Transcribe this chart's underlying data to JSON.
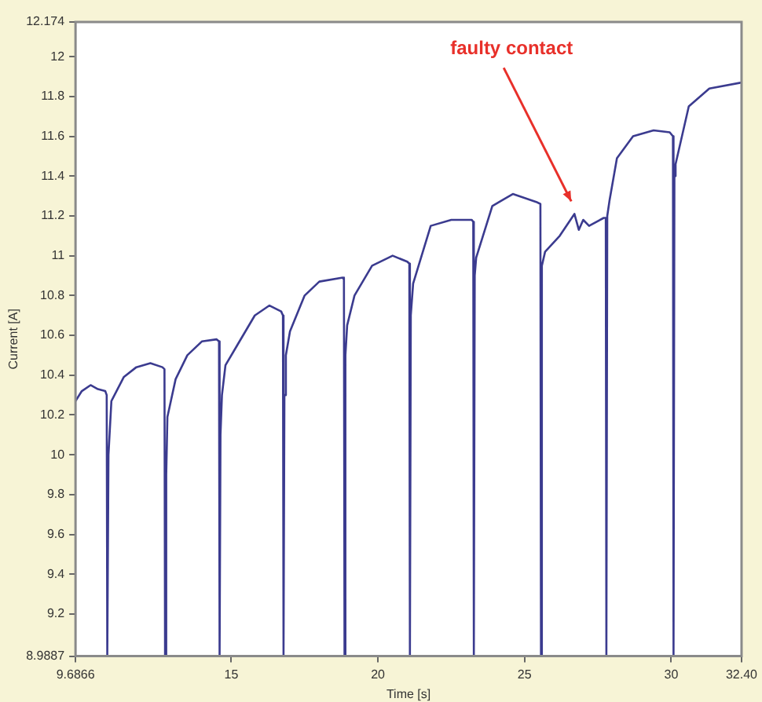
{
  "chart_data": {
    "type": "line",
    "xlabel": "Time [s]",
    "ylabel": "Current [A]",
    "series": [
      {
        "color": "#3b3b8f",
        "x": [
          9.6866,
          9.9,
          10.2,
          10.45,
          10.7,
          10.75,
          10.77,
          10.81,
          10.91,
          11.33,
          11.76,
          12.24,
          12.65,
          12.72,
          12.74,
          12.78,
          12.82,
          13.1,
          13.5,
          14.0,
          14.5,
          14.58,
          14.6,
          14.63,
          14.68,
          14.8,
          15.2,
          15.8,
          16.3,
          16.7,
          16.76,
          16.78,
          16.81,
          16.86,
          17.0,
          17.5,
          18.0,
          18.8,
          18.84,
          18.86,
          18.89,
          18.95,
          19.2,
          19.8,
          20.5,
          21.0,
          21.07,
          21.09,
          21.12,
          21.2,
          21.8,
          22.5,
          23.2,
          23.25,
          23.27,
          23.3,
          23.35,
          23.9,
          24.6,
          25.4,
          25.54,
          25.56,
          25.59,
          25.7,
          26.2,
          26.7,
          26.85,
          27.0,
          27.2,
          27.7,
          27.77,
          27.79,
          27.82,
          27.9,
          28.15,
          28.7,
          29.4,
          29.95,
          30.06,
          30.08,
          30.11,
          30.15,
          30.6,
          31.3,
          32.4
        ],
        "values": [
          10.27,
          10.32,
          10.35,
          10.33,
          10.32,
          10.3,
          8.9887,
          10.0,
          10.27,
          10.39,
          10.44,
          10.46,
          10.44,
          10.43,
          8.9887,
          9.9,
          10.19,
          10.38,
          10.5,
          10.57,
          10.58,
          10.57,
          8.9887,
          10.1,
          10.3,
          10.45,
          10.55,
          10.7,
          10.75,
          10.72,
          10.7,
          8.9887,
          10.3,
          10.5,
          10.62,
          10.8,
          10.87,
          10.89,
          10.88,
          8.9887,
          10.5,
          10.65,
          10.8,
          10.95,
          11.0,
          10.97,
          10.96,
          8.9887,
          10.7,
          10.86,
          11.15,
          11.18,
          11.18,
          11.17,
          8.9887,
          10.9,
          10.99,
          11.25,
          11.31,
          11.27,
          11.26,
          8.9887,
          10.95,
          11.02,
          11.1,
          11.21,
          11.13,
          11.18,
          11.15,
          11.19,
          11.19,
          8.9887,
          11.2,
          11.28,
          11.49,
          11.6,
          11.63,
          11.62,
          11.6,
          8.9887,
          11.4,
          11.46,
          11.75,
          11.84,
          11.87
        ]
      }
    ],
    "xlim": [
      9.6866,
      32.4
    ],
    "xticks": [
      9.6866,
      15,
      20,
      25,
      30,
      {
        "value": 32.4,
        "label": "32.40"
      }
    ],
    "ylim": [
      8.9887,
      12.174
    ],
    "yticks": [
      8.9887,
      9.2,
      9.4,
      9.6,
      9.8,
      10,
      10.2,
      10.4,
      10.6,
      10.8,
      11,
      11.2,
      11.4,
      11.6,
      11.8,
      12,
      12.174
    ],
    "annotations": [
      {
        "text": "faulty contact",
        "x": 26.7,
        "y": 11.21
      }
    ],
    "grid": false,
    "legend": false,
    "marker": "none",
    "line_style": "solid"
  }
}
